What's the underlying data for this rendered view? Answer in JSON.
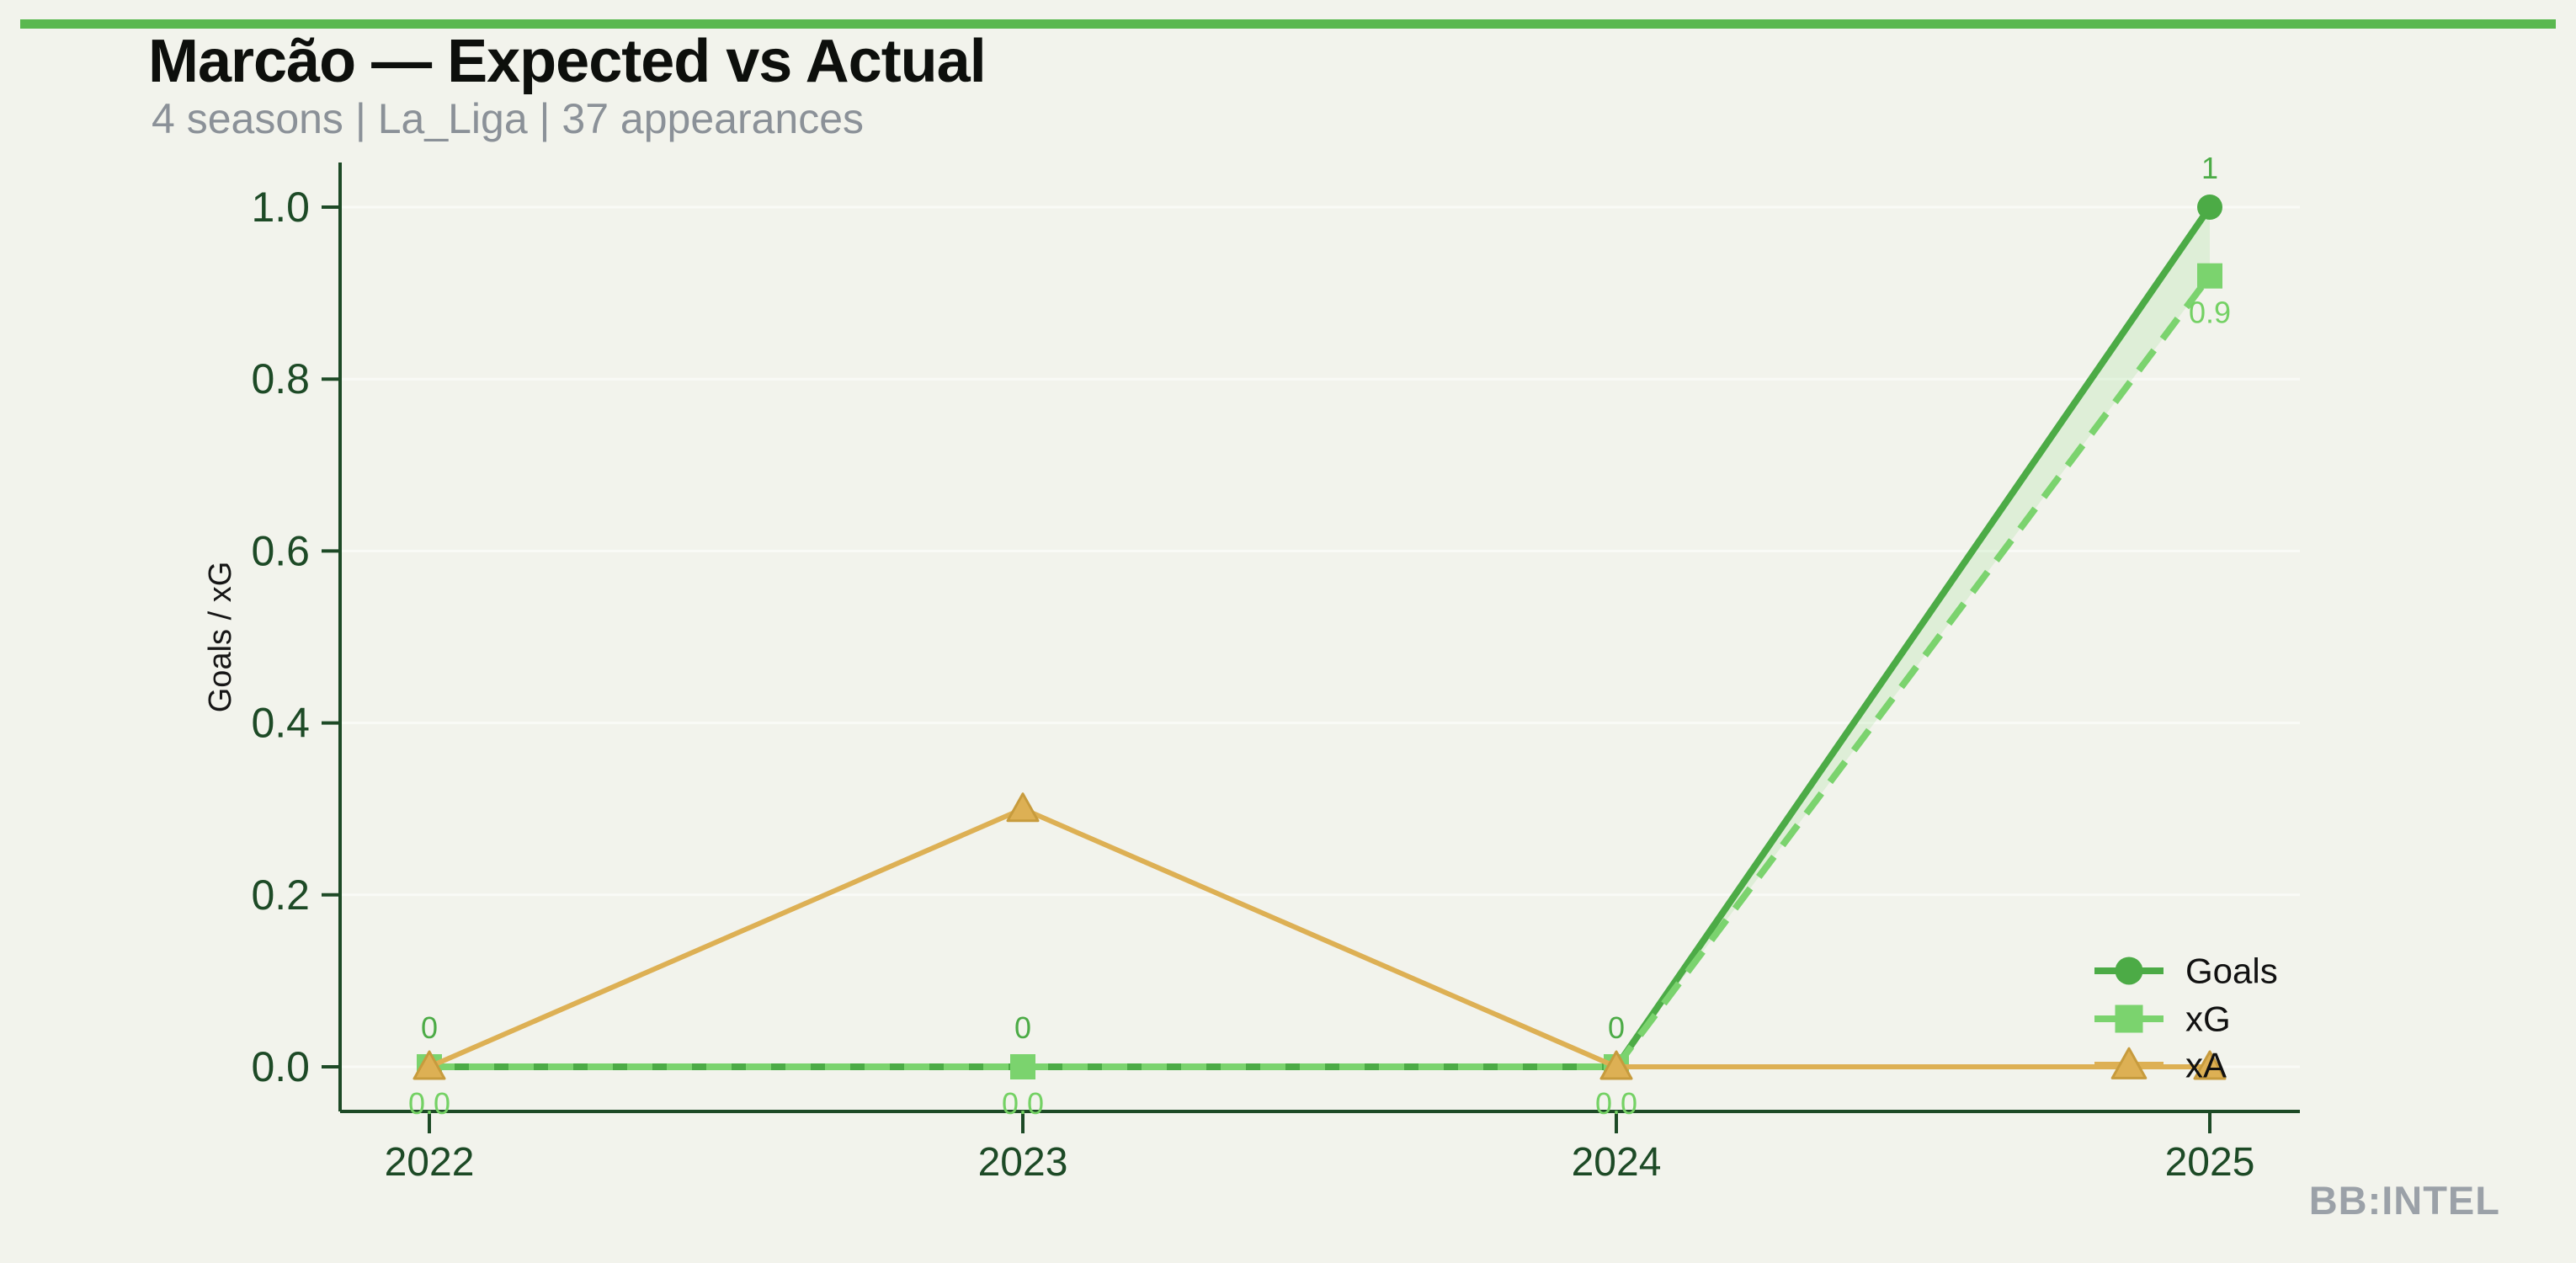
{
  "page": {
    "title": "Marcão — Expected vs Actual",
    "subtitle": "4 seasons | La_Liga | 37 appearances",
    "watermark": "BB:INTEL",
    "colors": {
      "bg": "#f2f3ec",
      "accent": "#5ab84f",
      "title": "#0d0f0c",
      "subtitle": "#8b9198",
      "watermark": "#9ba1a8",
      "axis": "#1d4a26",
      "grid": "#ffffff",
      "ylabel_color": "#161616"
    }
  },
  "chart_data": {
    "type": "line",
    "title": "Marcão — Expected vs Actual",
    "subtitle": "4 seasons | La_Liga | 37 appearances",
    "ylabel": "Goals / xG",
    "xlabel": "",
    "categories": [
      2022,
      2023,
      2024,
      2025
    ],
    "x_tick_labels": [
      "2022",
      "2023",
      "2024",
      "2025"
    ],
    "y_ticks": [
      0.0,
      0.2,
      0.4,
      0.6,
      0.8,
      1.0
    ],
    "y_tick_labels": [
      "0.0",
      "0.2",
      "0.4",
      "0.6",
      "0.8",
      "1.0"
    ],
    "ylim": [
      -0.05,
      1.05
    ],
    "grid": true,
    "legend": {
      "position": "lower right",
      "entries": [
        "Goals",
        "xG",
        "xA"
      ]
    },
    "series": [
      {
        "name": "Goals",
        "marker": "circle",
        "line_style": "solid",
        "color": "#4cab46",
        "label_color": "#4cab46",
        "values": [
          0,
          0,
          0,
          1
        ],
        "point_labels": [
          "0",
          "0",
          "0",
          "1"
        ],
        "labels_position": "above"
      },
      {
        "name": "xG",
        "marker": "square",
        "line_style": "dashed",
        "color": "#7bd36e",
        "label_color": "#74d164",
        "values": [
          0,
          0,
          0,
          0.92
        ],
        "point_labels": [
          "0.0",
          "0.0",
          "0.0",
          "0.9"
        ],
        "labels_position": "below"
      },
      {
        "name": "xA",
        "marker": "triangle",
        "line_style": "solid",
        "color": "#ddb054",
        "marker_edge": "#c79b3d",
        "values": [
          0,
          0.3,
          0,
          0
        ],
        "point_labels": [],
        "labels_position": "none"
      }
    ],
    "band_between": [
      "Goals",
      "xG"
    ],
    "band_color": "rgba(123,211,110,0.17)"
  }
}
